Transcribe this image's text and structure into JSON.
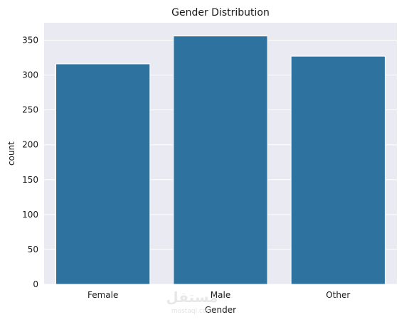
{
  "chart_data": {
    "type": "bar",
    "title": "Gender Distribution",
    "xlabel": "Gender",
    "ylabel": "count",
    "categories": [
      "Female",
      "Male",
      "Other"
    ],
    "values": [
      316,
      356,
      327
    ],
    "ylim": [
      0,
      375
    ],
    "yticks": [
      0,
      50,
      100,
      150,
      200,
      250,
      300,
      350
    ],
    "grid": true,
    "legend": "none",
    "colors": {
      "bar": "#2e72a0",
      "plot_background": "#eaeaf2",
      "grid": "#ffffff"
    }
  },
  "watermark": {
    "logo_text": "مستقل",
    "sub_text": "mostaql.com"
  }
}
